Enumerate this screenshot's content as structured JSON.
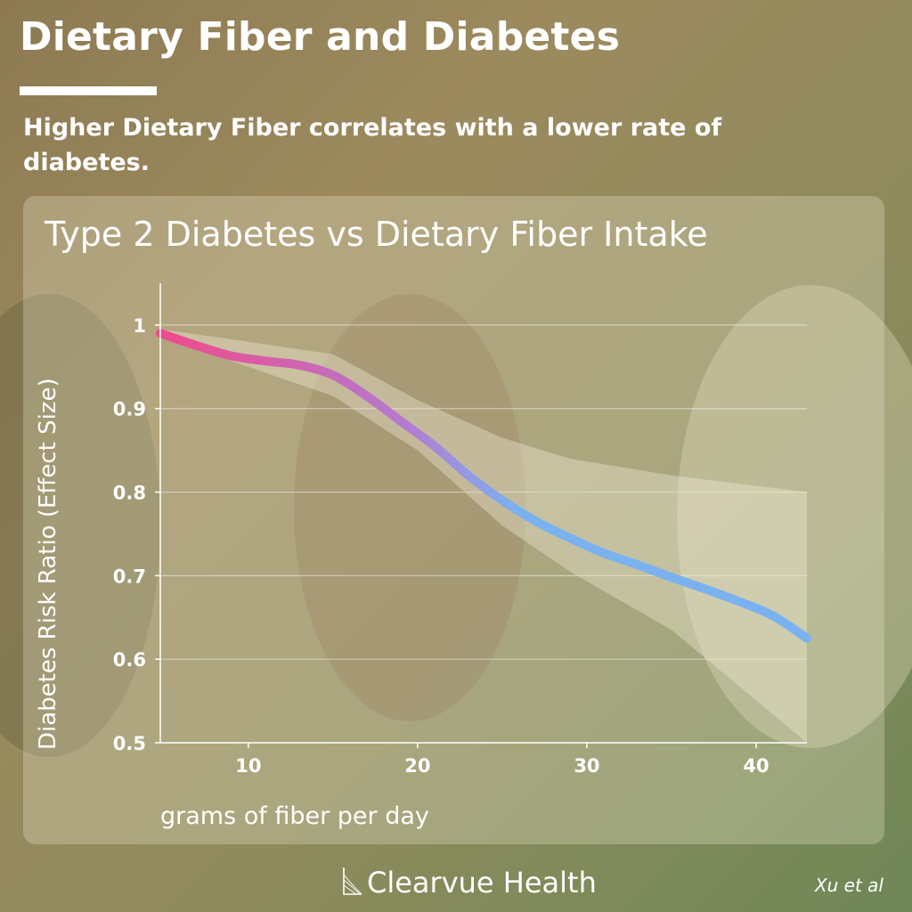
{
  "header": {
    "title": "Dietary Fiber and Diabetes",
    "subtitle": "Higher Dietary Fiber correlates with a lower rate of diabetes."
  },
  "footer": {
    "brand": "Clearvue Health",
    "brand_icon": "clearvue-logo-icon",
    "citation": "Xu et al"
  },
  "colors": {
    "text": "#ffffff",
    "line_start": "#ef4a8a",
    "line_mid": "#b57ad0",
    "line_end": "#7ab2f0",
    "confidence_band": "#ebe8d0"
  },
  "chart_data": {
    "type": "line",
    "title": "Type 2 Diabetes vs Dietary Fiber Intake",
    "xlabel": "grams of fiber per day",
    "ylabel": "Diabetes Risk Ratio (Effect Size)",
    "xlim": [
      4.8,
      43
    ],
    "ylim": [
      0.5,
      1.05
    ],
    "xticks": [
      10,
      20,
      30,
      40
    ],
    "yticks": [
      0.5,
      0.6,
      0.7,
      0.8,
      0.9,
      1
    ],
    "ytick_labels": [
      "0.5",
      "0.6",
      "0.7",
      "0.8",
      "0.9",
      "1"
    ],
    "grid": "horizontal",
    "series": [
      {
        "x": [
          4.8,
          7,
          9,
          11,
          13,
          15,
          17,
          19,
          21,
          23,
          25,
          27,
          29,
          31,
          33,
          35,
          37,
          39,
          41,
          43
        ],
        "y": [
          0.99,
          0.975,
          0.963,
          0.957,
          0.952,
          0.94,
          0.915,
          0.885,
          0.855,
          0.82,
          0.79,
          0.765,
          0.745,
          0.727,
          0.713,
          0.698,
          0.684,
          0.669,
          0.652,
          0.625
        ]
      }
    ],
    "confidence_band": {
      "x": [
        4.8,
        10,
        15,
        20,
        25,
        29,
        35,
        43
      ],
      "upper": [
        0.995,
        0.98,
        0.965,
        0.91,
        0.865,
        0.84,
        0.82,
        0.8
      ],
      "lower": [
        0.985,
        0.95,
        0.915,
        0.85,
        0.76,
        0.705,
        0.635,
        0.5
      ]
    }
  }
}
